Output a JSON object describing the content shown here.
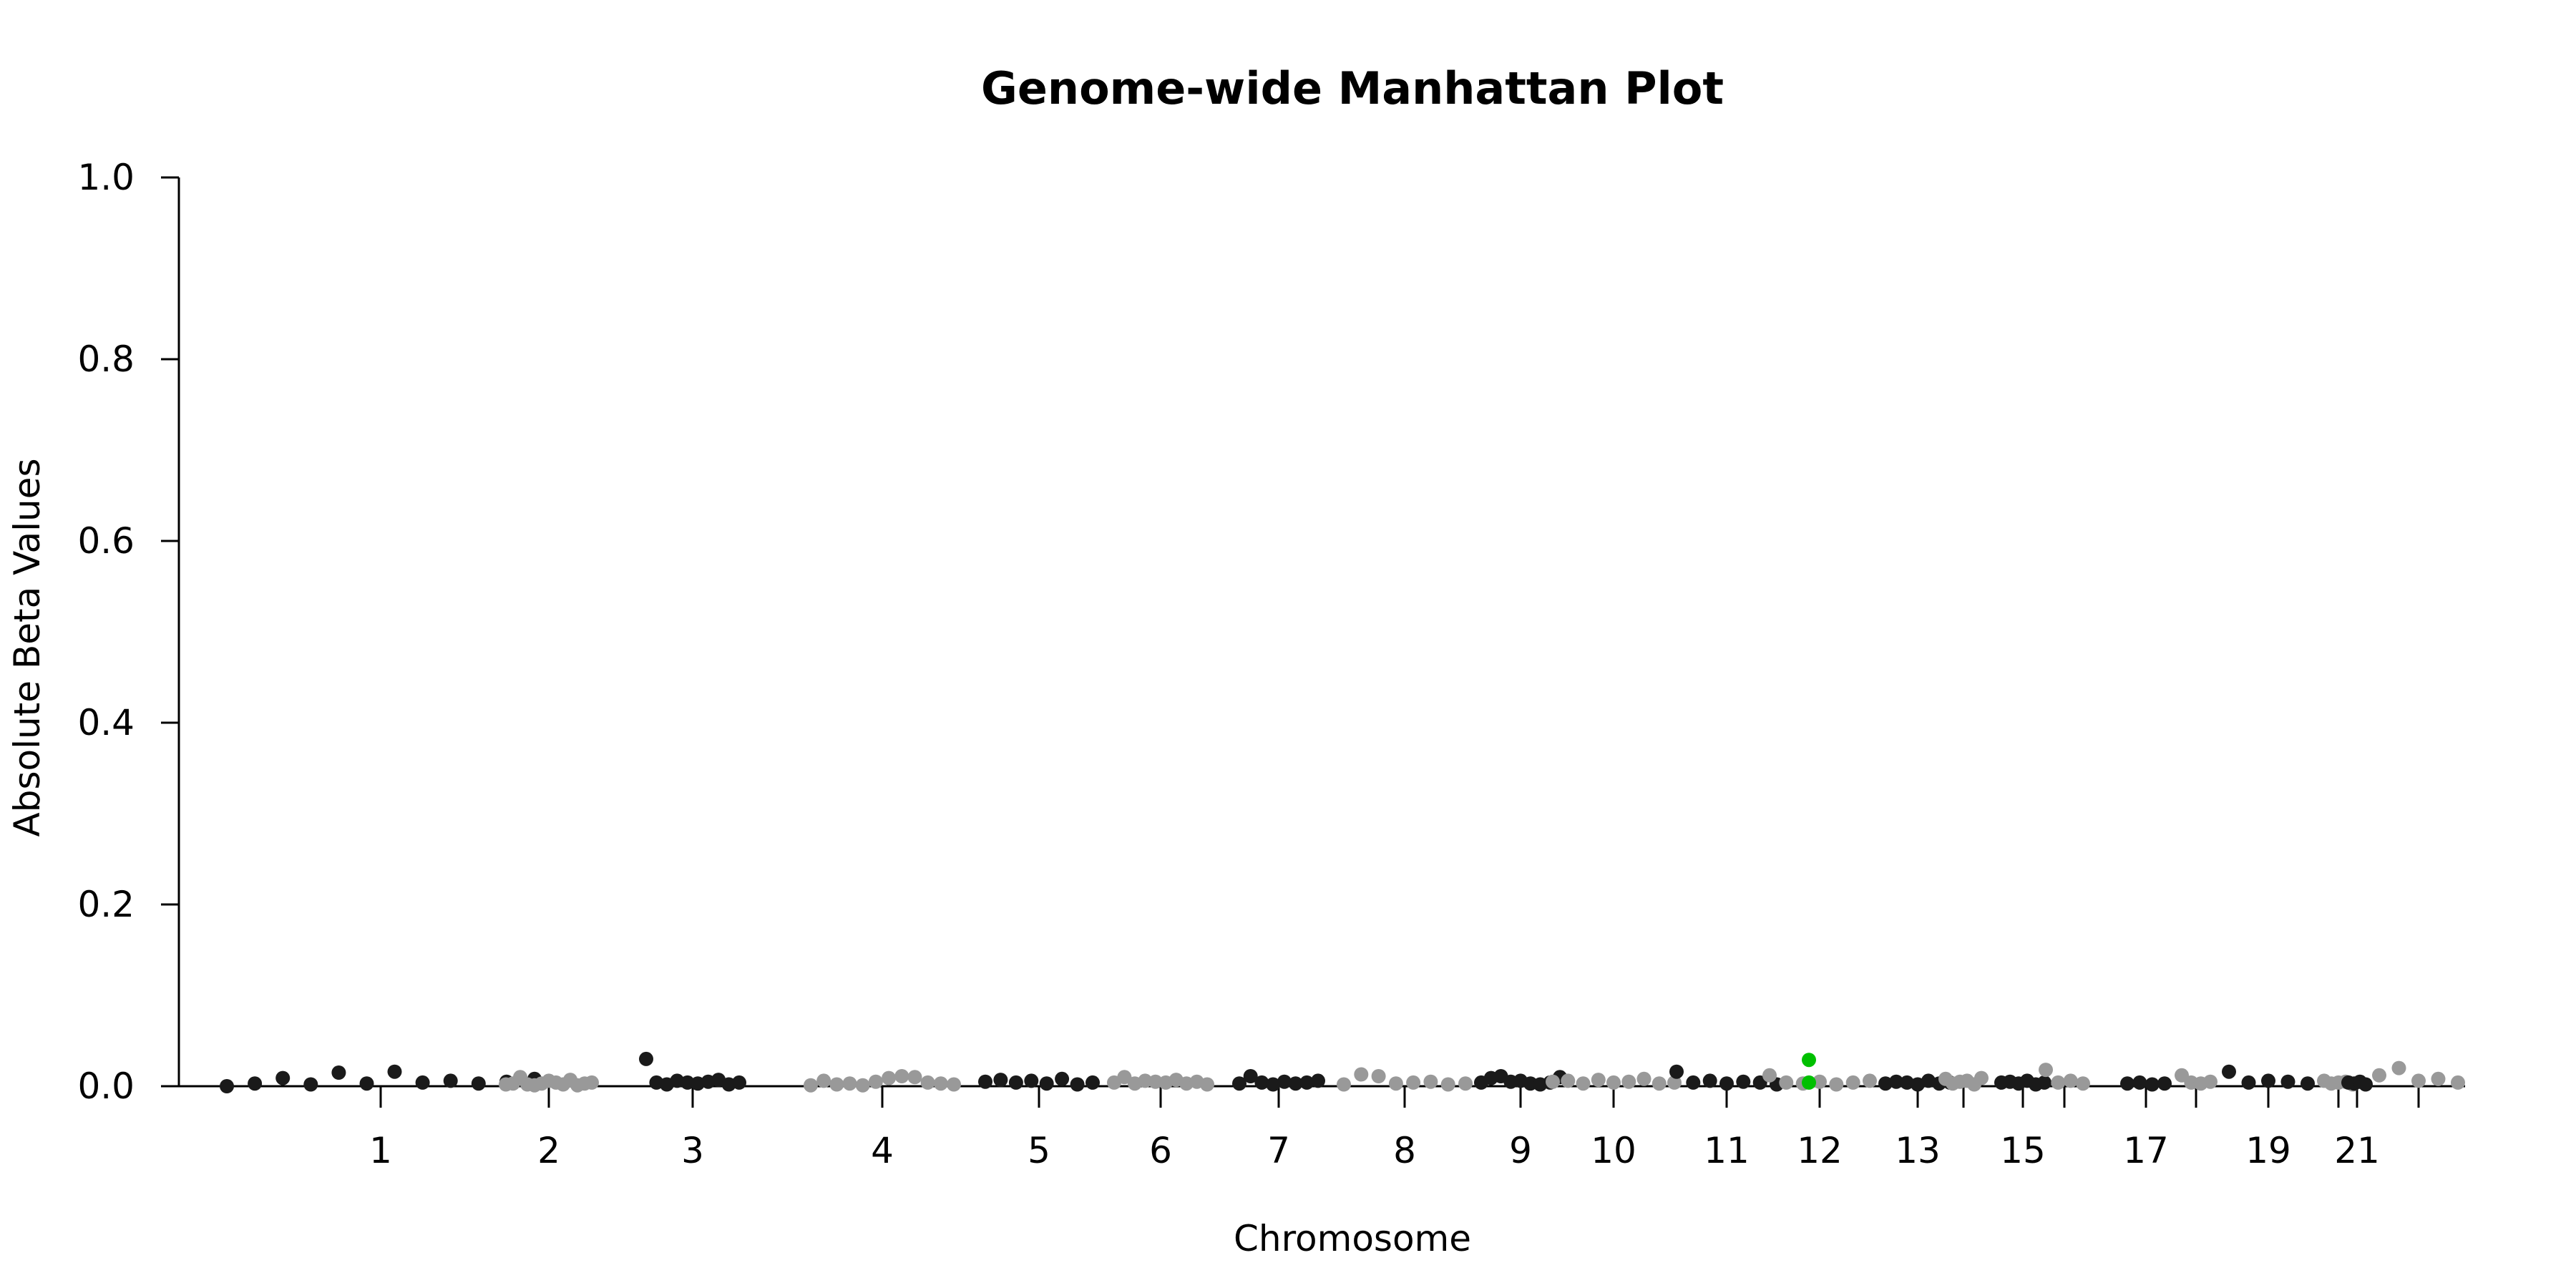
{
  "chart_data": {
    "type": "scatter",
    "title": "Genome-wide Manhattan Plot",
    "xlabel": "Chromosome",
    "ylabel": "Absolute Beta Values",
    "ylim": [
      0,
      1
    ],
    "y_ticks": [
      "0.0",
      "0.2",
      "0.4",
      "0.6",
      "0.8",
      "1.0"
    ],
    "x_ticks": [
      "1",
      "2",
      "3",
      "4",
      "5",
      "6",
      "7",
      "8",
      "9",
      "10",
      "11",
      "12",
      "13",
      "15",
      "17",
      "19",
      "21"
    ],
    "grid": false,
    "legend": "none",
    "colors": {
      "odd": "#1a1a1a",
      "even": "#999999",
      "highlight": "#00c000",
      "axis": "#000000"
    },
    "chromosomes": [
      {
        "chr": 1,
        "labeled": true,
        "points": [
          0.0,
          0.003,
          0.009,
          0.002,
          0.015,
          0.003,
          0.016,
          0.004,
          0.006,
          0.003,
          0.005,
          0.008
        ]
      },
      {
        "chr": 2,
        "labeled": true,
        "points": [
          0.002,
          0.003,
          0.01,
          0.002,
          0.001,
          0.003,
          0.006,
          0.004,
          0.002,
          0.007,
          0.001,
          0.003,
          0.004
        ]
      },
      {
        "chr": 3,
        "labeled": true,
        "points": [
          0.03,
          0.004,
          0.002,
          0.006,
          0.004,
          0.003,
          0.005,
          0.007,
          0.002,
          0.004
        ]
      },
      {
        "chr": 4,
        "labeled": true,
        "points": [
          0.001,
          0.006,
          0.002,
          0.003,
          0.001,
          0.005,
          0.009,
          0.011,
          0.01,
          0.004,
          0.003,
          0.002
        ]
      },
      {
        "chr": 5,
        "labeled": true,
        "points": [
          0.005,
          0.007,
          0.004,
          0.006,
          0.003,
          0.008,
          0.002,
          0.004
        ]
      },
      {
        "chr": 6,
        "labeled": true,
        "points": [
          0.004,
          0.01,
          0.003,
          0.006,
          0.005,
          0.004,
          0.007,
          0.003,
          0.005,
          0.002
        ]
      },
      {
        "chr": 7,
        "labeled": true,
        "points": [
          0.003,
          0.011,
          0.004,
          0.002,
          0.005,
          0.003,
          0.004,
          0.006
        ]
      },
      {
        "chr": 8,
        "labeled": true,
        "points": [
          0.002,
          0.013,
          0.011,
          0.003,
          0.004,
          0.005,
          0.002,
          0.003
        ]
      },
      {
        "chr": 9,
        "labeled": true,
        "points": [
          0.004,
          0.009,
          0.011,
          0.005,
          0.006,
          0.003,
          0.002,
          0.004,
          0.01
        ]
      },
      {
        "chr": 10,
        "labeled": true,
        "points": [
          0.005,
          0.006,
          0.003,
          0.007,
          0.004,
          0.005,
          0.008,
          0.003,
          0.004
        ]
      },
      {
        "chr": 11,
        "labeled": true,
        "points": [
          0.016,
          0.004,
          0.006,
          0.003,
          0.005,
          0.004,
          0.002
        ]
      },
      {
        "chr": 12,
        "labeled": true,
        "points": [
          0.012,
          0.004,
          0.003,
          0.005,
          0.002,
          0.004,
          0.006
        ]
      },
      {
        "chr": 13,
        "labeled": true,
        "points": [
          0.003,
          0.005,
          0.004,
          0.002,
          0.006,
          0.003,
          0.004
        ]
      },
      {
        "chr": 14,
        "labeled": false,
        "points": [
          0.008,
          0.003,
          0.005,
          0.006,
          0.002,
          0.009
        ]
      },
      {
        "chr": 15,
        "labeled": true,
        "points": [
          0.004,
          0.005,
          0.003,
          0.006,
          0.002,
          0.004
        ]
      },
      {
        "chr": 16,
        "labeled": false,
        "points": [
          0.018,
          0.004,
          0.006,
          0.003
        ]
      },
      {
        "chr": 17,
        "labeled": true,
        "points": [
          0.003,
          0.004,
          0.002,
          0.003
        ]
      },
      {
        "chr": 18,
        "labeled": false,
        "points": [
          0.012,
          0.004,
          0.003,
          0.005
        ]
      },
      {
        "chr": 19,
        "labeled": true,
        "points": [
          0.016,
          0.004,
          0.006,
          0.005,
          0.003
        ]
      },
      {
        "chr": 20,
        "labeled": false,
        "points": [
          0.006,
          0.003,
          0.004,
          0.005,
          0.002
        ]
      },
      {
        "chr": 21,
        "labeled": true,
        "points": [
          0.004,
          0.003,
          0.005,
          0.002
        ]
      },
      {
        "chr": 22,
        "labeled": false,
        "points": [
          0.012,
          0.02,
          0.006,
          0.008,
          0.004
        ]
      }
    ],
    "highlighted_points": [
      {
        "chr": 12,
        "value": 0.029
      },
      {
        "chr": 12,
        "value": 0.004
      }
    ]
  }
}
